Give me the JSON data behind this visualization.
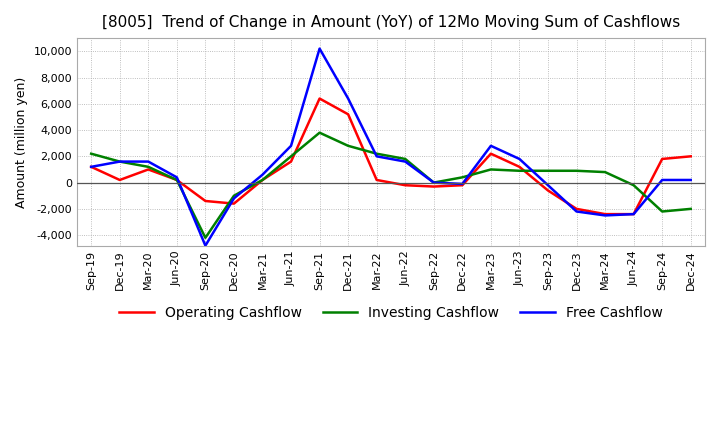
{
  "title": "[8005]  Trend of Change in Amount (YoY) of 12Mo Moving Sum of Cashflows",
  "ylabel": "Amount (million yen)",
  "ylim": [
    -4800,
    11000
  ],
  "yticks": [
    -4000,
    -2000,
    0,
    2000,
    4000,
    6000,
    8000,
    10000
  ],
  "x_labels": [
    "Sep-19",
    "Dec-19",
    "Mar-20",
    "Jun-20",
    "Sep-20",
    "Dec-20",
    "Mar-21",
    "Jun-21",
    "Sep-21",
    "Dec-21",
    "Mar-22",
    "Jun-22",
    "Sep-22",
    "Dec-22",
    "Mar-23",
    "Jun-23",
    "Sep-23",
    "Dec-23",
    "Mar-24",
    "Jun-24",
    "Sep-24",
    "Dec-24"
  ],
  "operating": [
    1200,
    200,
    1000,
    200,
    -1400,
    -1600,
    200,
    1600,
    6400,
    5200,
    200,
    -200,
    -300,
    -200,
    2200,
    1200,
    -600,
    -2000,
    -2400,
    -2400,
    1800,
    2000
  ],
  "investing": [
    2200,
    1600,
    1200,
    200,
    -4200,
    -1000,
    200,
    2000,
    3800,
    2800,
    2200,
    1800,
    0,
    400,
    1000,
    900,
    900,
    900,
    800,
    -200,
    -2200,
    -2000
  ],
  "free": [
    1200,
    1600,
    1600,
    400,
    -4800,
    -1200,
    600,
    2800,
    10200,
    6400,
    2000,
    1600,
    0,
    -100,
    2800,
    1800,
    -200,
    -2200,
    -2500,
    -2400,
    200,
    200
  ],
  "operating_color": "#ff0000",
  "investing_color": "#008000",
  "free_color": "#0000ff",
  "background_color": "#ffffff",
  "grid_color": "#aaaaaa",
  "title_fontsize": 11,
  "axis_fontsize": 9,
  "legend_fontsize": 10,
  "tick_fontsize": 8
}
